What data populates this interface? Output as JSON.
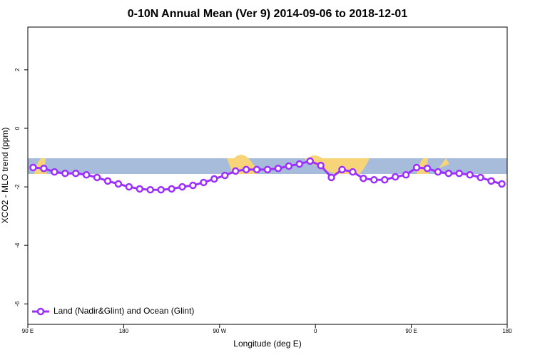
{
  "chart_data": {
    "type": "line",
    "title": "0-10N Annual Mean (Ver 9)   2014-09-06 to 2018-12-01",
    "x_label": "Longitude (deg E)",
    "y_label": "XCO2 - MLO trend (ppm)",
    "x": [
      95,
      105,
      115,
      125,
      135,
      145,
      155,
      165,
      175,
      185,
      195,
      205,
      215,
      225,
      235,
      245,
      255,
      265,
      275,
      285,
      295,
      305,
      315,
      325,
      335,
      345,
      355,
      365,
      375,
      385,
      395,
      405,
      415,
      425,
      435,
      445,
      455,
      465,
      475,
      485,
      495,
      505,
      515,
      525,
      535
    ],
    "series": [
      {
        "name": "Land (Nadir&Glint) and Ocean (Glint)",
        "color": "#9b30ff",
        "values": [
          -1.34,
          -1.37,
          -1.49,
          -1.54,
          -1.54,
          -1.59,
          -1.68,
          -1.8,
          -1.9,
          -2.0,
          -2.07,
          -2.1,
          -2.1,
          -2.07,
          -2.0,
          -1.95,
          -1.85,
          -1.73,
          -1.61,
          -1.46,
          -1.41,
          -1.41,
          -1.41,
          -1.37,
          -1.29,
          -1.22,
          -1.12,
          -1.27,
          -1.68,
          -1.41,
          -1.49,
          -1.71,
          -1.76,
          -1.76,
          -1.66,
          -1.59,
          -1.34,
          -1.37,
          -1.49,
          -1.54,
          -1.54,
          -1.59,
          -1.68,
          -1.8,
          -1.9
        ]
      }
    ],
    "xlim": [
      90,
      540
    ],
    "xticks": [
      {
        "value": 90,
        "label": "90 E"
      },
      180,
      {
        "value": 270,
        "label": "90 W"
      },
      {
        "value": 360,
        "label": "0"
      },
      {
        "value": 450,
        "label": "90 E"
      },
      {
        "value": 540,
        "label": "180"
      }
    ],
    "ylim": [
      -6.7,
      3.46
    ],
    "yticks": [
      -6,
      -4,
      -2,
      0,
      2
    ],
    "legend": "bottom-left"
  }
}
